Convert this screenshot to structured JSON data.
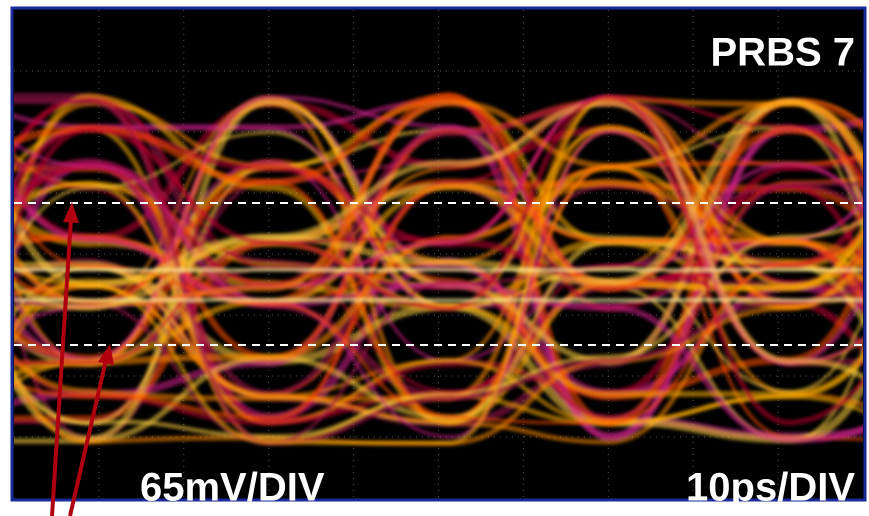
{
  "screen": {
    "pattern_label": "PRBS 7",
    "vertical_scale": "65mV/DIV",
    "horizontal_scale": "10ps/DIV"
  }
}
